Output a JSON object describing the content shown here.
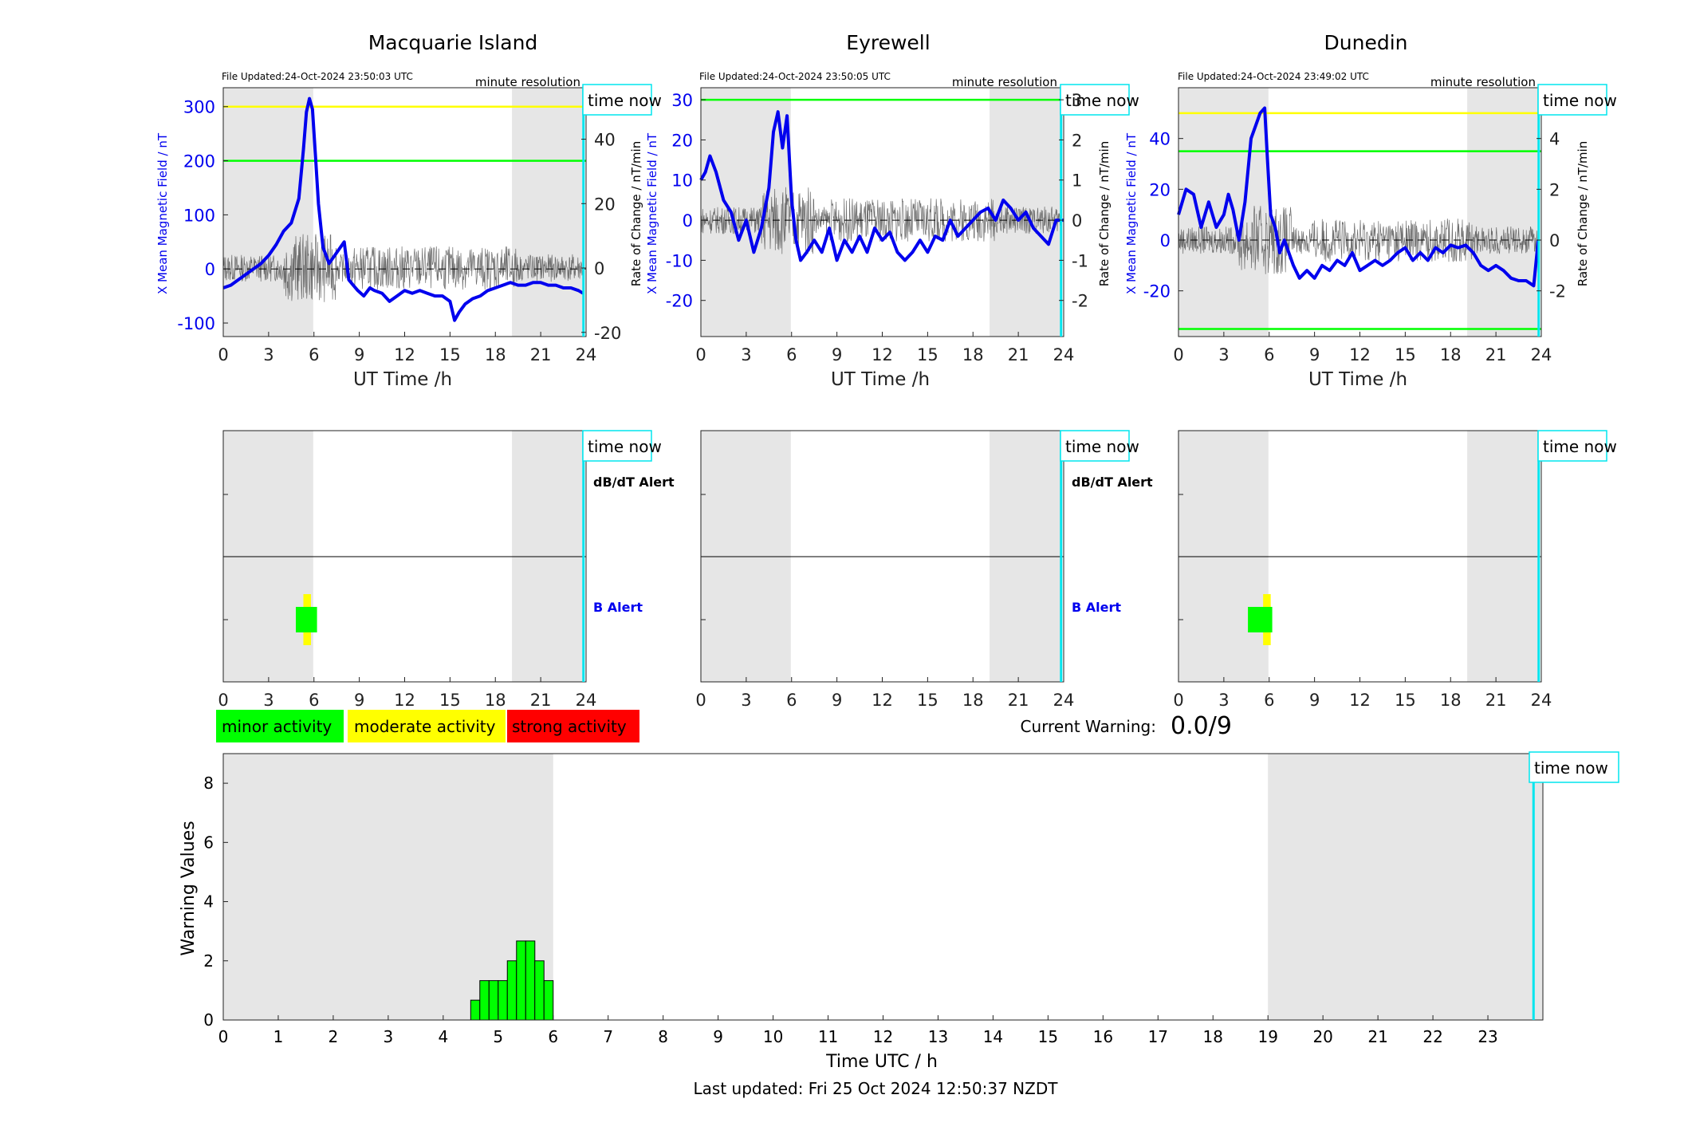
{
  "labels": {
    "x_axis_station": "UT Time /h",
    "y_left": "X Mean Magnetic Field / nT",
    "y_right": "Rate of Change / nT/min",
    "minute_resolution": "minute resolution",
    "time_now": "time now",
    "dbdt_alert": "dB/dT Alert",
    "b_alert": "B Alert",
    "current_warning_label": "Current Warning:",
    "current_warning_value": "0.0/9",
    "bottom_xlabel": "Time UTC / h",
    "bottom_ylabel": "Warning Values",
    "last_updated": "Last updated: Fri 25 Oct 2024 12:50:37 NZDT"
  },
  "legend": [
    {
      "label": "minor activity",
      "color": "#00ff00"
    },
    {
      "label": "moderate activity",
      "color": "#ffff00"
    },
    {
      "label": "strong activity",
      "color": "#ff0000"
    }
  ],
  "colors": {
    "mean_field": "#0000ee",
    "rate": "#555555",
    "shade": "#e6e6e6",
    "now": "#00e5ee",
    "minor": "#00ff00",
    "moderate": "#ffff00"
  },
  "time_now_h": 23.83,
  "chart_data": [
    {
      "type": "line",
      "title": "Macquarie Island",
      "file_updated": "File Updated:24-Oct-2024 23:50:03 UTC",
      "xlim": [
        0,
        24
      ],
      "xticks": [
        0,
        3,
        6,
        9,
        12,
        15,
        18,
        21,
        24
      ],
      "ylim": [
        -125,
        335
      ],
      "yticks": [
        -100,
        0,
        100,
        200,
        300
      ],
      "y2lim": [
        -21.3,
        56
      ],
      "y2ticks": [
        -20,
        0,
        20,
        40
      ],
      "shade": [
        [
          0,
          5.95
        ],
        [
          19.1,
          23.85
        ]
      ],
      "threshold_lines": [
        {
          "y": 300,
          "color": "#ffff00"
        },
        {
          "y": 200,
          "color": "#00ff00"
        }
      ],
      "x": [
        0,
        0.5,
        1,
        1.5,
        2,
        2.5,
        3,
        3.5,
        4,
        4.5,
        5,
        5.3,
        5.5,
        5.7,
        5.9,
        6.1,
        6.3,
        6.6,
        7,
        7.5,
        8,
        8.3,
        8.6,
        8.9,
        9.3,
        9.7,
        10,
        10.5,
        11,
        11.5,
        12,
        12.5,
        13,
        13.5,
        14,
        14.5,
        15,
        15.3,
        15.6,
        16,
        16.5,
        17,
        17.5,
        18,
        18.5,
        19,
        19.5,
        20,
        20.5,
        21,
        21.5,
        22,
        22.5,
        23,
        23.5,
        23.8
      ],
      "y": [
        -35,
        -30,
        -20,
        -10,
        0,
        10,
        25,
        45,
        70,
        85,
        130,
        220,
        290,
        315,
        295,
        210,
        120,
        40,
        10,
        30,
        50,
        -20,
        -30,
        -40,
        -50,
        -35,
        -40,
        -45,
        -60,
        -50,
        -40,
        -45,
        -40,
        -45,
        -50,
        -50,
        -60,
        -95,
        -80,
        -65,
        -55,
        -50,
        -40,
        -35,
        -30,
        -25,
        -30,
        -30,
        -25,
        -25,
        -30,
        -30,
        -35,
        -35,
        -40,
        -45
      ],
      "b_alert": [
        {
          "x0": 4.8,
          "x1": 6.2,
          "level": "minor"
        },
        {
          "x0": 5.3,
          "x1": 5.8,
          "level": "moderate"
        }
      ]
    },
    {
      "type": "line",
      "title": "Eyrewell",
      "file_updated": "File Updated:24-Oct-2024 23:50:05 UTC",
      "xlim": [
        0,
        24
      ],
      "xticks": [
        0,
        3,
        6,
        9,
        12,
        15,
        18,
        21,
        24
      ],
      "ylim": [
        -29,
        33
      ],
      "yticks": [
        -20,
        -10,
        0,
        10,
        20,
        30
      ],
      "y2lim": [
        -2.9,
        3.3
      ],
      "y2ticks": [
        -2,
        -1,
        0,
        1,
        2,
        3
      ],
      "shade": [
        [
          0,
          5.95
        ],
        [
          19.1,
          23.85
        ]
      ],
      "threshold_lines": [
        {
          "y": 30,
          "color": "#00ff00"
        }
      ],
      "x": [
        0,
        0.3,
        0.6,
        1,
        1.5,
        2,
        2.5,
        3,
        3.5,
        4,
        4.5,
        4.8,
        5.1,
        5.4,
        5.7,
        6,
        6.3,
        6.6,
        7,
        7.5,
        8,
        8.5,
        9,
        9.5,
        10,
        10.5,
        11,
        11.5,
        12,
        12.5,
        13,
        13.5,
        14,
        14.5,
        15,
        15.5,
        16,
        16.5,
        17,
        17.5,
        18,
        18.5,
        19,
        19.5,
        20,
        20.5,
        21,
        21.5,
        22,
        22.5,
        23,
        23.5,
        24
      ],
      "y": [
        10,
        12,
        16,
        12,
        5,
        2,
        -5,
        0,
        -8,
        -2,
        8,
        22,
        27,
        18,
        26,
        5,
        -5,
        -10,
        -8,
        -5,
        -8,
        -2,
        -10,
        -5,
        -8,
        -4,
        -8,
        -2,
        -5,
        -3,
        -8,
        -10,
        -8,
        -5,
        -8,
        -4,
        -5,
        0,
        -4,
        -2,
        0,
        2,
        3,
        0,
        5,
        3,
        0,
        2,
        -2,
        -4,
        -6,
        0,
        0
      ]
    },
    {
      "type": "line",
      "title": "Dunedin",
      "file_updated": "File Updated:24-Oct-2024 23:49:02 UTC",
      "xlim": [
        0,
        24
      ],
      "xticks": [
        0,
        3,
        6,
        9,
        12,
        15,
        18,
        21,
        24
      ],
      "ylim": [
        -38,
        60
      ],
      "yticks": [
        -20,
        0,
        20,
        40
      ],
      "y2lim": [
        -3.8,
        6
      ],
      "y2ticks": [
        -2,
        0,
        2,
        4
      ],
      "shade": [
        [
          0,
          5.95
        ],
        [
          19.1,
          23.85
        ]
      ],
      "threshold_lines": [
        {
          "y": 50,
          "color": "#ffff00"
        },
        {
          "y": 35,
          "color": "#00ff00"
        },
        {
          "y": -35,
          "color": "#00ff00"
        }
      ],
      "x": [
        0,
        0.5,
        1,
        1.5,
        2,
        2.5,
        3,
        3.3,
        3.6,
        4,
        4.4,
        4.8,
        5.1,
        5.4,
        5.7,
        5.9,
        6.1,
        6.4,
        6.7,
        7,
        7.3,
        7.6,
        8,
        8.5,
        9,
        9.5,
        10,
        10.5,
        11,
        11.5,
        12,
        12.5,
        13,
        13.5,
        14,
        14.5,
        15,
        15.5,
        16,
        16.5,
        17,
        17.5,
        18,
        18.5,
        19,
        19.5,
        20,
        20.5,
        21,
        21.5,
        22,
        22.5,
        23,
        23.5,
        23.8
      ],
      "y": [
        10,
        20,
        18,
        5,
        15,
        5,
        10,
        18,
        12,
        0,
        15,
        40,
        45,
        50,
        52,
        30,
        10,
        5,
        -5,
        0,
        -5,
        -10,
        -15,
        -12,
        -15,
        -10,
        -12,
        -8,
        -10,
        -5,
        -12,
        -10,
        -8,
        -10,
        -8,
        -5,
        -3,
        -8,
        -5,
        -8,
        -3,
        -5,
        -2,
        -3,
        -2,
        -5,
        -10,
        -12,
        -10,
        -12,
        -15,
        -16,
        -16,
        -18,
        0
      ],
      "b_alert": [
        {
          "x0": 4.6,
          "x1": 6.2,
          "level": "minor"
        },
        {
          "x0": 5.6,
          "x1": 6.1,
          "level": "moderate"
        }
      ]
    },
    {
      "type": "bar",
      "xlim": [
        0,
        24
      ],
      "ylim": [
        0,
        9
      ],
      "xticks": [
        0,
        1,
        2,
        3,
        4,
        5,
        6,
        7,
        8,
        9,
        10,
        11,
        12,
        13,
        14,
        15,
        16,
        17,
        18,
        19,
        20,
        21,
        22,
        23
      ],
      "yticks": [
        0,
        2,
        4,
        6,
        8
      ],
      "shade": [
        [
          0,
          6.0
        ],
        [
          19.0,
          24.0
        ]
      ],
      "bar_width_h": 0.1667,
      "x": [
        4.667,
        4.833,
        5.0,
        5.167,
        5.333,
        5.5,
        5.667,
        5.833,
        6.0
      ],
      "values": [
        0.67,
        1.33,
        1.33,
        1.33,
        2.0,
        2.67,
        2.67,
        2.0,
        1.33
      ]
    }
  ]
}
